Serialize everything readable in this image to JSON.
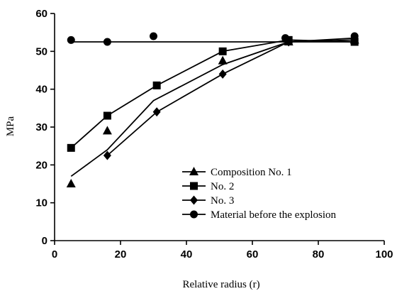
{
  "chart_data": {
    "type": "scatter",
    "xlabel": "Relative radius (r)",
    "ylabel": "MPa",
    "xlim": [
      0,
      100
    ],
    "ylim": [
      0,
      60
    ],
    "xticks": [
      0,
      20,
      40,
      60,
      80,
      100
    ],
    "yticks": [
      0,
      10,
      20,
      30,
      40,
      50,
      60
    ],
    "grid": false,
    "legend_position": "bottom-right",
    "series": [
      {
        "name": "Composition No. 1",
        "marker": "triangle",
        "points": [
          [
            5,
            15
          ],
          [
            16,
            29
          ],
          [
            51,
            47.5
          ],
          [
            71,
            52.5
          ],
          [
            91,
            53
          ]
        ],
        "fit_line": [
          [
            5,
            17
          ],
          [
            16,
            24
          ],
          [
            30,
            37
          ],
          [
            51,
            46.5
          ],
          [
            71,
            52.5
          ],
          [
            91,
            53
          ]
        ]
      },
      {
        "name": "No. 2",
        "marker": "square",
        "points": [
          [
            5,
            24.5
          ],
          [
            16,
            33
          ],
          [
            31,
            41
          ],
          [
            51,
            50
          ],
          [
            71,
            53
          ],
          [
            91,
            52.5
          ]
        ],
        "fit_line": [
          [
            5,
            24.5
          ],
          [
            16,
            33
          ],
          [
            31,
            41
          ],
          [
            51,
            50
          ],
          [
            71,
            53
          ],
          [
            91,
            52.5
          ]
        ]
      },
      {
        "name": "No. 3",
        "marker": "diamond",
        "points": [
          [
            16,
            22.5
          ],
          [
            31,
            34
          ],
          [
            51,
            44
          ],
          [
            71,
            52.5
          ],
          [
            91,
            53.5
          ]
        ],
        "fit_line": [
          [
            16,
            22.5
          ],
          [
            31,
            34
          ],
          [
            51,
            44
          ],
          [
            71,
            52.5
          ],
          [
            91,
            53.5
          ]
        ]
      },
      {
        "name": "Material before the explosion",
        "marker": "circle",
        "points": [
          [
            5,
            53
          ],
          [
            16,
            52.5
          ],
          [
            30,
            54
          ],
          [
            70,
            53.5
          ],
          [
            91,
            54
          ]
        ],
        "fit_line": [
          [
            5,
            52.5
          ],
          [
            91,
            52.5
          ]
        ]
      }
    ]
  }
}
